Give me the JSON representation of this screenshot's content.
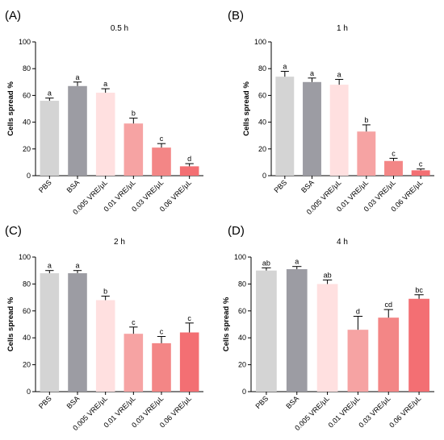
{
  "chart_data": [
    {
      "type": "bar",
      "panel_label": "(A)",
      "title": "0.5 h",
      "ylabel": "Cells spread %",
      "xlabel": "",
      "ylim": [
        0,
        100
      ],
      "yticks": [
        "0",
        "20",
        "40",
        "60",
        "80",
        "100"
      ],
      "categories": [
        "PBS",
        "BSA",
        "0.005 VRE/μL",
        "0.01 VRE/μL",
        "0.03 VRE/μL",
        "0.06 VRE/μL"
      ],
      "values": [
        56,
        67,
        62,
        39,
        21,
        7
      ],
      "errors": [
        2,
        3,
        3,
        4,
        3,
        2
      ],
      "significance": [
        "a",
        "a",
        "a",
        "b",
        "c",
        "d"
      ],
      "colors": [
        "#d4d4d4",
        "#9c9ca3",
        "#ffe0e0",
        "#f6a3a3",
        "#f38686",
        "#f36f73"
      ],
      "grid": false
    },
    {
      "type": "bar",
      "panel_label": "(B)",
      "title": "1 h",
      "ylabel": "Cells spread %",
      "xlabel": "",
      "ylim": [
        0,
        100
      ],
      "yticks": [
        "0",
        "20",
        "40",
        "60",
        "80",
        "100"
      ],
      "categories": [
        "PBS",
        "BSA",
        "0.005 VRE/μL",
        "0.01 VRE/μL",
        "0.03 VRE/μL",
        "0.06 VRE/μL"
      ],
      "values": [
        74,
        70,
        68,
        33,
        11,
        4
      ],
      "errors": [
        4,
        3,
        4,
        5,
        2,
        1
      ],
      "significance": [
        "a",
        "a",
        "a",
        "b",
        "c",
        "c"
      ],
      "colors": [
        "#d4d4d4",
        "#9c9ca3",
        "#ffe0e0",
        "#f6a3a3",
        "#f38686",
        "#f36f73"
      ],
      "grid": false
    },
    {
      "type": "bar",
      "panel_label": "(C)",
      "title": "2 h",
      "ylabel": "Cells spread %",
      "xlabel": "",
      "ylim": [
        0,
        100
      ],
      "yticks": [
        "0",
        "20",
        "40",
        "60",
        "80",
        "100"
      ],
      "categories": [
        "PBS",
        "BSA",
        "0.005 VRE/μL",
        "0.01 VRE/μL",
        "0.03 VRE/μL",
        "0.06 VRE/μL"
      ],
      "values": [
        88,
        88,
        68,
        43,
        36,
        44
      ],
      "errors": [
        2,
        2,
        3,
        5,
        5,
        7
      ],
      "significance": [
        "a",
        "a",
        "b",
        "c",
        "c",
        "c"
      ],
      "colors": [
        "#d4d4d4",
        "#9c9ca3",
        "#ffe0e0",
        "#f6a3a3",
        "#f38686",
        "#f36f73"
      ],
      "grid": false
    },
    {
      "type": "bar",
      "panel_label": "(D)",
      "title": "4 h",
      "ylabel": "Cells spread %",
      "xlabel": "",
      "ylim": [
        0,
        100
      ],
      "yticks": [
        "0",
        "20",
        "40",
        "60",
        "80",
        "100"
      ],
      "categories": [
        "PBS",
        "BSA",
        "0.005 VRE/μL",
        "0.01 VRE/μL",
        "0.03 VRE/μL",
        "0.06 VRE/μL"
      ],
      "values": [
        90,
        91,
        80,
        46,
        55,
        69
      ],
      "errors": [
        2,
        2,
        3,
        10,
        6,
        3
      ],
      "significance": [
        "ab",
        "a",
        "ab",
        "d",
        "cd",
        "bc"
      ],
      "colors": [
        "#d4d4d4",
        "#9c9ca3",
        "#ffe0e0",
        "#f6a3a3",
        "#f38686",
        "#f36f73"
      ],
      "grid": false
    }
  ]
}
